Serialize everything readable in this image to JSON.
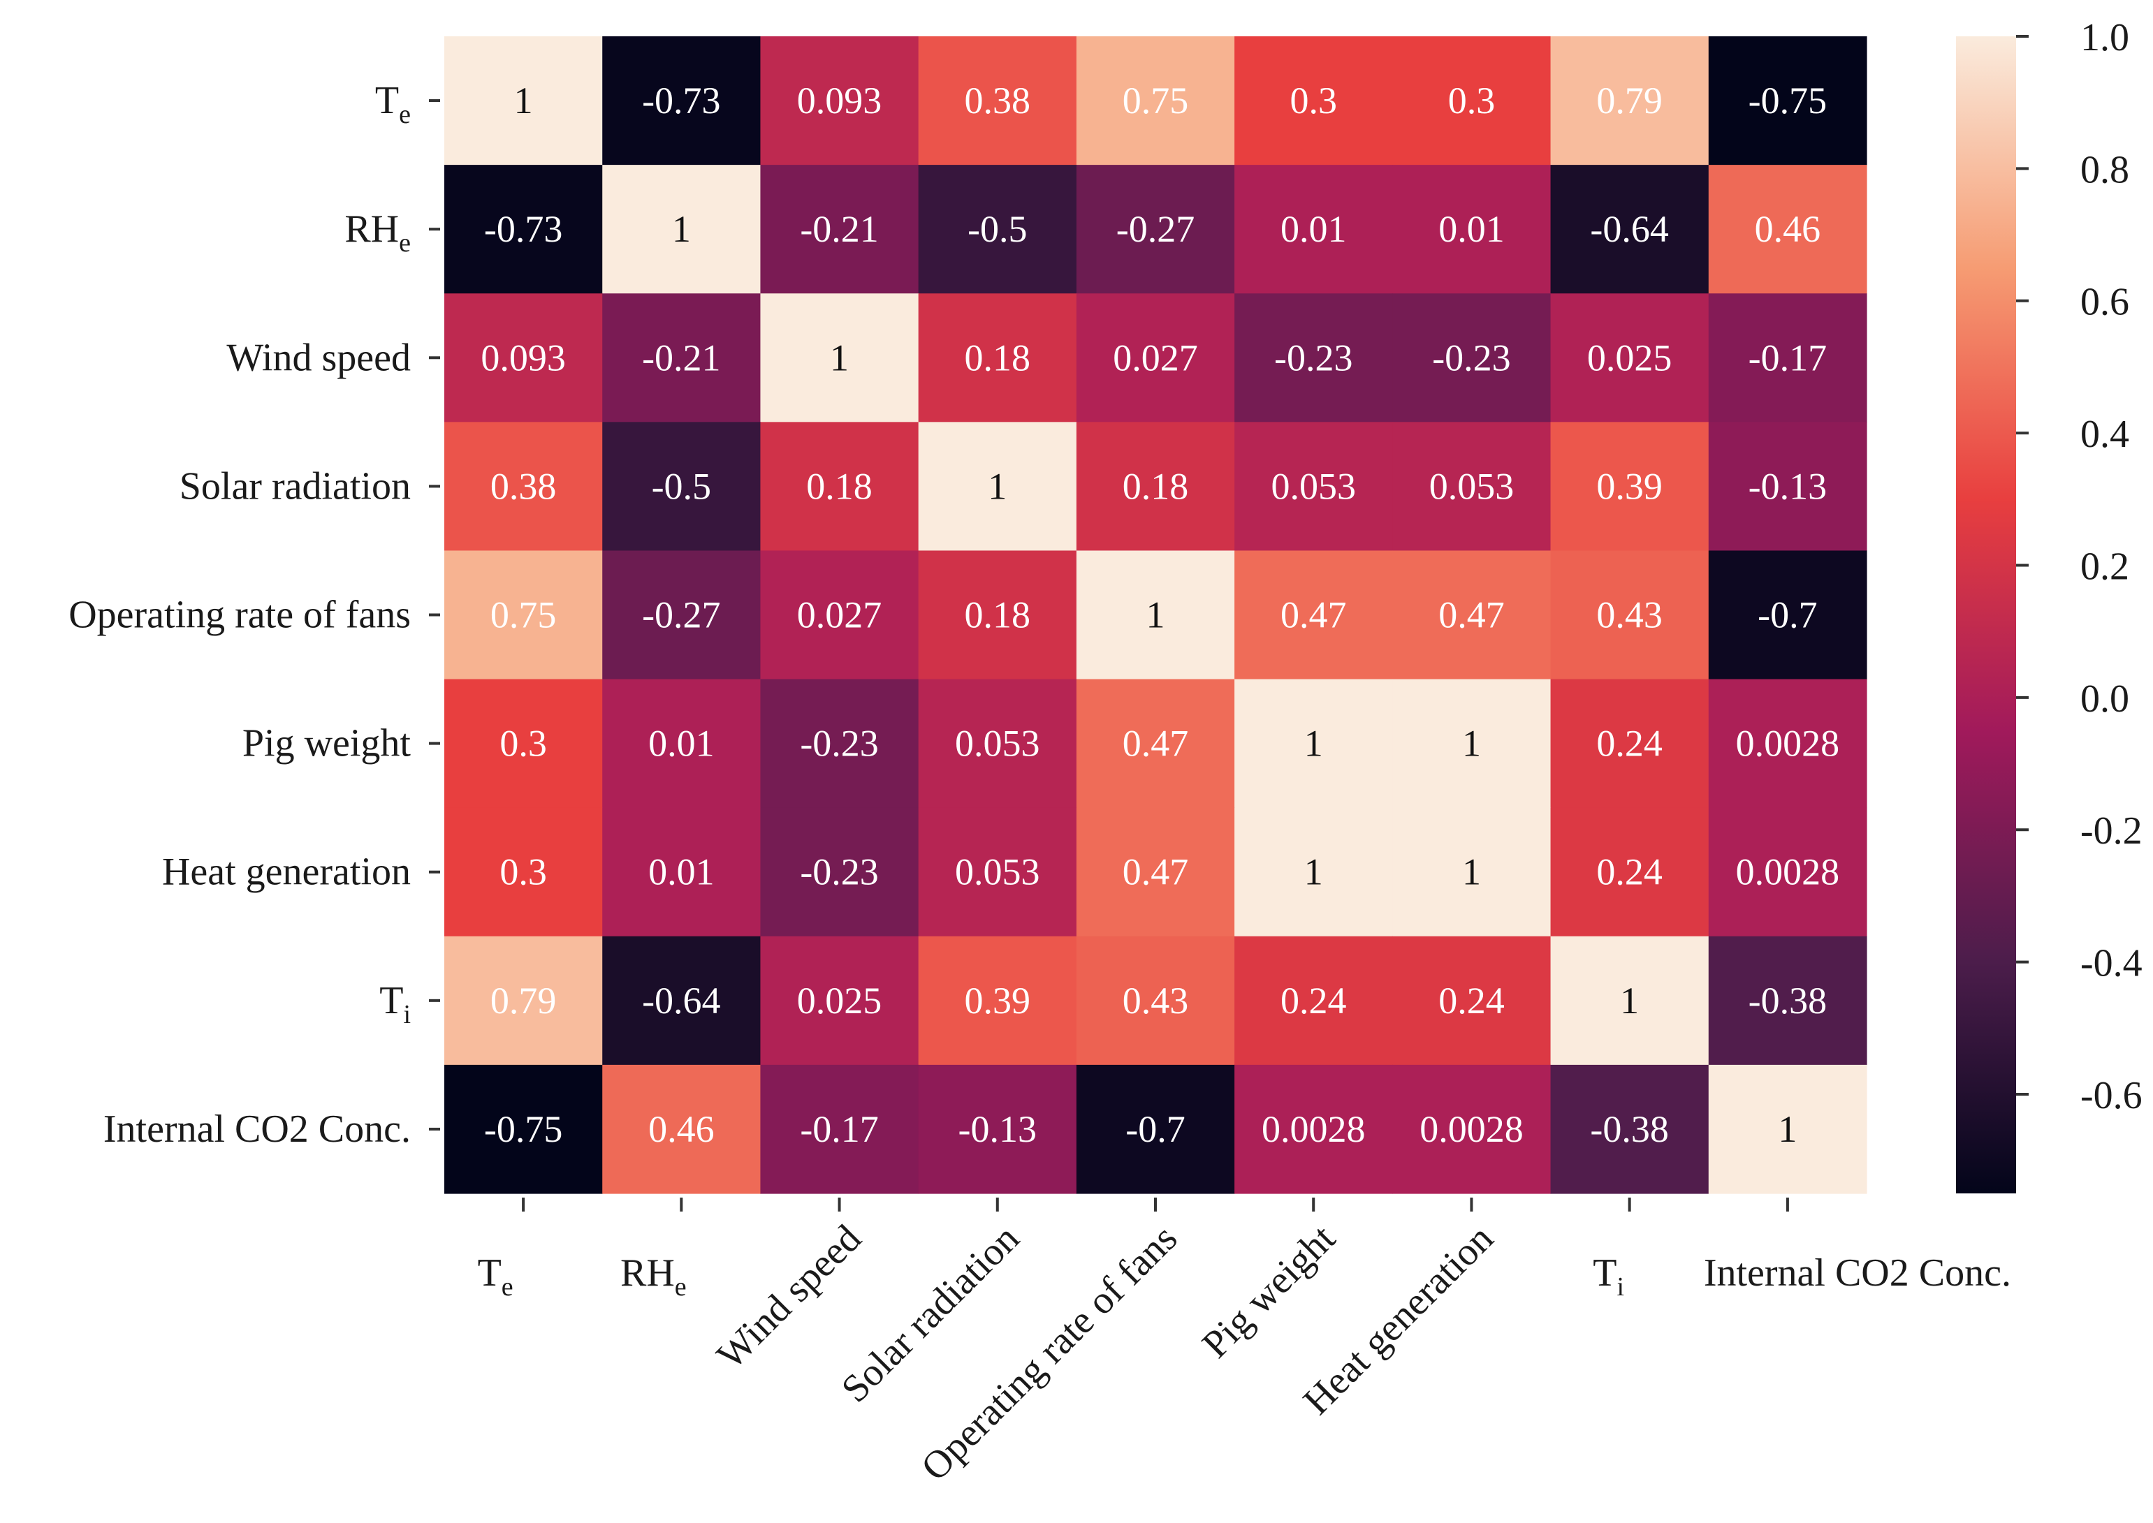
{
  "chart_data": {
    "type": "heatmap",
    "title": "",
    "row_labels": [
      {
        "main": "T",
        "sub": "e"
      },
      {
        "main": "RH",
        "sub": "e"
      },
      {
        "main": "Wind speed",
        "sub": ""
      },
      {
        "main": "Solar radiation",
        "sub": ""
      },
      {
        "main": "Operating rate of fans",
        "sub": ""
      },
      {
        "main": "Pig weight",
        "sub": ""
      },
      {
        "main": "Heat generation",
        "sub": ""
      },
      {
        "main": "T",
        "sub": "i"
      },
      {
        "main": "Internal CO2 Conc.",
        "sub": ""
      }
    ],
    "col_labels": [
      {
        "main": "T",
        "sub": "e"
      },
      {
        "main": "RH",
        "sub": "e"
      },
      {
        "main": "Wind speed",
        "sub": ""
      },
      {
        "main": "Solar radiation",
        "sub": ""
      },
      {
        "main": "Operating rate of fans",
        "sub": ""
      },
      {
        "main": "Pig weight",
        "sub": ""
      },
      {
        "main": "Heat generation",
        "sub": ""
      },
      {
        "main": "T",
        "sub": "i"
      },
      {
        "main": "Internal CO2 Conc.",
        "sub": ""
      }
    ],
    "values": [
      [
        1,
        -0.73,
        0.093,
        0.38,
        0.75,
        0.3,
        0.3,
        0.79,
        -0.75
      ],
      [
        -0.73,
        1,
        -0.21,
        -0.5,
        -0.27,
        0.01,
        0.01,
        -0.64,
        0.46
      ],
      [
        0.093,
        -0.21,
        1,
        0.18,
        0.027,
        -0.23,
        -0.23,
        0.025,
        -0.17
      ],
      [
        0.38,
        -0.5,
        0.18,
        1,
        0.18,
        0.053,
        0.053,
        0.39,
        -0.13
      ],
      [
        0.75,
        -0.27,
        0.027,
        0.18,
        1,
        0.47,
        0.47,
        0.43,
        -0.7
      ],
      [
        0.3,
        0.01,
        -0.23,
        0.053,
        0.47,
        1,
        1,
        0.24,
        0.0028
      ],
      [
        0.3,
        0.01,
        -0.23,
        0.053,
        0.47,
        1,
        1,
        0.24,
        0.0028
      ],
      [
        0.79,
        -0.64,
        0.025,
        0.39,
        0.43,
        0.24,
        0.24,
        1,
        -0.38
      ],
      [
        -0.75,
        0.46,
        -0.17,
        -0.13,
        -0.7,
        0.0028,
        0.0028,
        -0.38,
        1
      ]
    ],
    "colorbar": {
      "min": -0.75,
      "max": 1.0,
      "ticks": [
        1.0,
        0.8,
        0.6,
        0.4,
        0.2,
        0.0,
        -0.2,
        -0.4,
        -0.6
      ],
      "tick_labels": [
        "1.0",
        "0.8",
        "0.6",
        "0.4",
        "0.2",
        "0.0",
        "-0.2",
        "-0.4",
        "-0.6"
      ],
      "colormap": "rocket",
      "stops": [
        "#03051a",
        "#4c1d4b",
        "#a11a5b",
        "#e83f3f",
        "#f69c73",
        "#faebdd"
      ]
    }
  }
}
